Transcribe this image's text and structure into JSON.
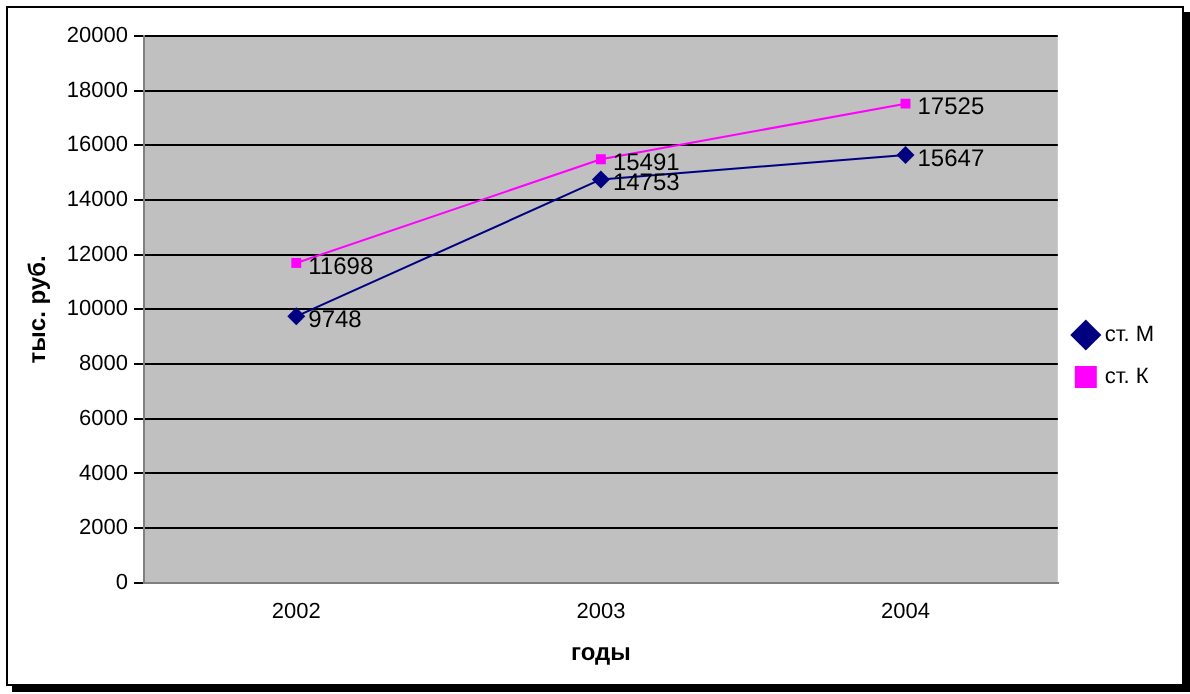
{
  "chart_data": {
    "type": "line",
    "xlabel": "годы",
    "ylabel": "тыс. руб.",
    "categories": [
      "2002",
      "2003",
      "2004"
    ],
    "series": [
      {
        "name": "ст. М",
        "color": "#000080",
        "marker": "diamond",
        "values": [
          9748,
          14753,
          15647
        ]
      },
      {
        "name": "ст. К",
        "color": "#ff00ff",
        "marker": "square",
        "values": [
          11698,
          15491,
          17525
        ]
      }
    ],
    "ylim": [
      0,
      20000
    ],
    "yticks": [
      0,
      2000,
      4000,
      6000,
      8000,
      10000,
      12000,
      14000,
      16000,
      18000,
      20000
    ],
    "grid": "y",
    "legend": "right",
    "data_labels": true
  }
}
